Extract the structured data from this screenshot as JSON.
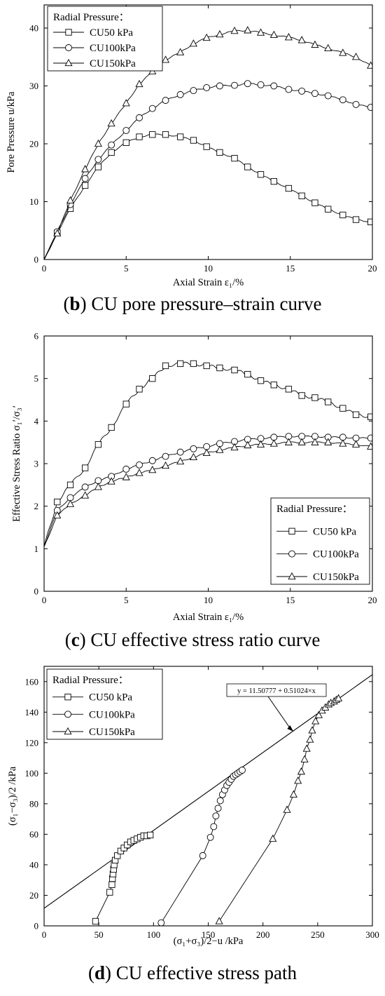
{
  "captions": [
    {
      "letter": "b",
      "text": " CU pore pressure–strain curve"
    },
    {
      "letter": "c",
      "text": " CU effective stress ratio curve"
    },
    {
      "letter": "d",
      "text": " CU effective stress path"
    }
  ],
  "chart_data": [
    {
      "type": "line",
      "xlabel": "Axial Strain  ε₁/%",
      "ylabel": "Pore Pressure  u/kPa",
      "xlim": [
        0,
        20
      ],
      "ylim": [
        0,
        44
      ],
      "xticks": [
        0,
        5,
        10,
        15,
        20
      ],
      "yticks": [
        0,
        10,
        20,
        30,
        40
      ],
      "legend": {
        "title": "Radial Pressure：",
        "position": "top-left"
      },
      "series": [
        {
          "name": "CU50 kPa",
          "marker": "square",
          "x": [
            0,
            0.8,
            1.6,
            2.5,
            3.3,
            4.1,
            5.0,
            5.8,
            6.6,
            7.4,
            8.3,
            9.1,
            9.9,
            10.7,
            11.6,
            12.4,
            13.2,
            14.0,
            14.9,
            15.7,
            16.5,
            17.3,
            18.2,
            19.0,
            19.9
          ],
          "y": [
            0,
            4.6,
            8.8,
            12.8,
            16.0,
            18.5,
            20.2,
            21.2,
            21.6,
            21.6,
            21.2,
            20.6,
            19.5,
            18.5,
            17.5,
            16.0,
            14.7,
            13.5,
            12.3,
            11.0,
            9.8,
            8.7,
            7.7,
            6.9,
            6.5
          ]
        },
        {
          "name": "CU100kPa",
          "marker": "circle",
          "x": [
            0,
            0.8,
            1.6,
            2.5,
            3.3,
            4.1,
            5.0,
            5.8,
            6.6,
            7.4,
            8.3,
            9.1,
            9.9,
            10.7,
            11.6,
            12.4,
            13.2,
            14.0,
            14.9,
            15.7,
            16.5,
            17.3,
            18.2,
            19.0,
            19.9
          ],
          "y": [
            0,
            4.8,
            9.5,
            14.0,
            17.3,
            19.8,
            22.3,
            24.5,
            26.1,
            27.5,
            28.5,
            29.2,
            29.7,
            30.0,
            30.1,
            30.4,
            30.2,
            30.0,
            29.4,
            29.1,
            28.7,
            28.3,
            27.6,
            26.8,
            26.3
          ]
        },
        {
          "name": "CU150kPa",
          "marker": "triangle",
          "x": [
            0,
            0.8,
            1.6,
            2.5,
            3.3,
            4.1,
            5.0,
            5.8,
            6.6,
            7.4,
            8.3,
            9.1,
            9.9,
            10.7,
            11.6,
            12.4,
            13.2,
            14.0,
            14.9,
            15.7,
            16.5,
            17.3,
            18.2,
            19.0,
            19.9
          ],
          "y": [
            0,
            4.5,
            10.2,
            15.6,
            20.0,
            23.5,
            27.0,
            30.3,
            32.5,
            34.5,
            35.8,
            37.3,
            38.3,
            38.9,
            39.5,
            39.6,
            39.2,
            38.8,
            38.4,
            37.9,
            37.1,
            36.5,
            35.7,
            35.0,
            33.5
          ]
        }
      ]
    },
    {
      "type": "line",
      "xlabel": "Axial Strain  ε₁/%",
      "ylabel": "Effective Stress Ratio  σ₁′/σ₃′",
      "xlim": [
        0,
        20
      ],
      "ylim": [
        0,
        6
      ],
      "xticks": [
        0,
        5,
        10,
        15,
        20
      ],
      "yticks": [
        0,
        1,
        2,
        3,
        4,
        5,
        6
      ],
      "legend": {
        "title": "Radial Pressure：",
        "position": "bottom-right"
      },
      "series": [
        {
          "name": "CU50 kPa",
          "marker": "square",
          "x": [
            0,
            0.8,
            1.6,
            2.5,
            3.3,
            4.1,
            5.0,
            5.8,
            6.6,
            7.4,
            8.3,
            9.1,
            9.9,
            10.7,
            11.6,
            12.4,
            13.2,
            14.0,
            14.9,
            15.7,
            16.5,
            17.3,
            18.2,
            19.0,
            19.9
          ],
          "y": [
            1.05,
            2.1,
            2.5,
            2.9,
            3.45,
            3.85,
            4.4,
            4.75,
            5.0,
            5.3,
            5.35,
            5.35,
            5.3,
            5.25,
            5.2,
            5.1,
            4.95,
            4.85,
            4.75,
            4.6,
            4.55,
            4.45,
            4.3,
            4.15,
            4.1
          ]
        },
        {
          "name": "CU100kPa",
          "marker": "circle",
          "x": [
            0,
            0.8,
            1.6,
            2.5,
            3.3,
            4.1,
            5.0,
            5.8,
            6.6,
            7.4,
            8.3,
            9.1,
            9.9,
            10.7,
            11.6,
            12.4,
            13.2,
            14.0,
            14.9,
            15.7,
            16.5,
            17.3,
            18.2,
            19.0,
            19.9
          ],
          "y": [
            1.05,
            1.9,
            2.2,
            2.45,
            2.6,
            2.7,
            2.87,
            2.97,
            3.07,
            3.17,
            3.27,
            3.35,
            3.4,
            3.47,
            3.52,
            3.57,
            3.59,
            3.62,
            3.64,
            3.64,
            3.64,
            3.62,
            3.62,
            3.6,
            3.6
          ]
        },
        {
          "name": "CU150kPa",
          "marker": "triangle",
          "x": [
            0,
            0.8,
            1.6,
            2.5,
            3.3,
            4.1,
            5.0,
            5.8,
            6.6,
            7.4,
            8.3,
            9.1,
            9.9,
            10.7,
            11.6,
            12.4,
            13.2,
            14.0,
            14.9,
            15.7,
            16.5,
            17.3,
            18.2,
            19.0,
            19.9
          ],
          "y": [
            1.05,
            1.78,
            2.05,
            2.25,
            2.45,
            2.58,
            2.68,
            2.78,
            2.85,
            2.95,
            3.05,
            3.15,
            3.25,
            3.32,
            3.38,
            3.43,
            3.45,
            3.47,
            3.5,
            3.5,
            3.5,
            3.5,
            3.47,
            3.45,
            3.4
          ]
        }
      ]
    },
    {
      "type": "line",
      "xlabel": "(σ₁+σ₃)/2−u /kPa",
      "ylabel": "(σ₁−σ₃)/2 /kPa",
      "xlim": [
        0,
        300
      ],
      "ylim": [
        0,
        170
      ],
      "xticks": [
        0,
        50,
        100,
        150,
        200,
        250,
        300
      ],
      "yticks": [
        0,
        20,
        40,
        60,
        80,
        100,
        120,
        140,
        160
      ],
      "legend": {
        "title": "Radial Pressure：",
        "position": "top-left"
      },
      "fit_line": {
        "equation": "y = 11.50777 + 0.51024×x",
        "intercept": 11.50777,
        "slope": 0.51024
      },
      "series": [
        {
          "name": "CU50 kPa",
          "marker": "square",
          "x": [
            47,
            60,
            62,
            62.5,
            63,
            63.5,
            64,
            65,
            67,
            70,
            73,
            76,
            79,
            82,
            85,
            88,
            91,
            94,
            97
          ],
          "y": [
            3,
            22,
            27,
            31,
            34,
            37,
            40,
            43,
            46,
            49,
            51,
            53,
            55,
            56,
            57,
            58,
            59,
            59,
            59.5
          ]
        },
        {
          "name": "CU100kPa",
          "marker": "circle",
          "x": [
            107,
            145,
            152,
            155,
            157,
            159,
            161,
            163,
            165,
            167,
            169,
            171,
            173,
            175,
            177,
            179,
            181
          ],
          "y": [
            2,
            46,
            58,
            65,
            72,
            77,
            82,
            86,
            89,
            92,
            94,
            96,
            98,
            99,
            100,
            101,
            102
          ]
        },
        {
          "name": "CU150kPa",
          "marker": "triangle",
          "x": [
            160,
            209,
            222,
            228,
            232,
            235,
            238,
            240,
            243,
            245,
            248,
            251,
            254,
            257,
            260,
            262,
            265,
            267,
            269
          ],
          "y": [
            3,
            57,
            76,
            86,
            95,
            101,
            109,
            116,
            122,
            128,
            134,
            138,
            141,
            143,
            145,
            146,
            147,
            148,
            149
          ]
        }
      ]
    }
  ]
}
